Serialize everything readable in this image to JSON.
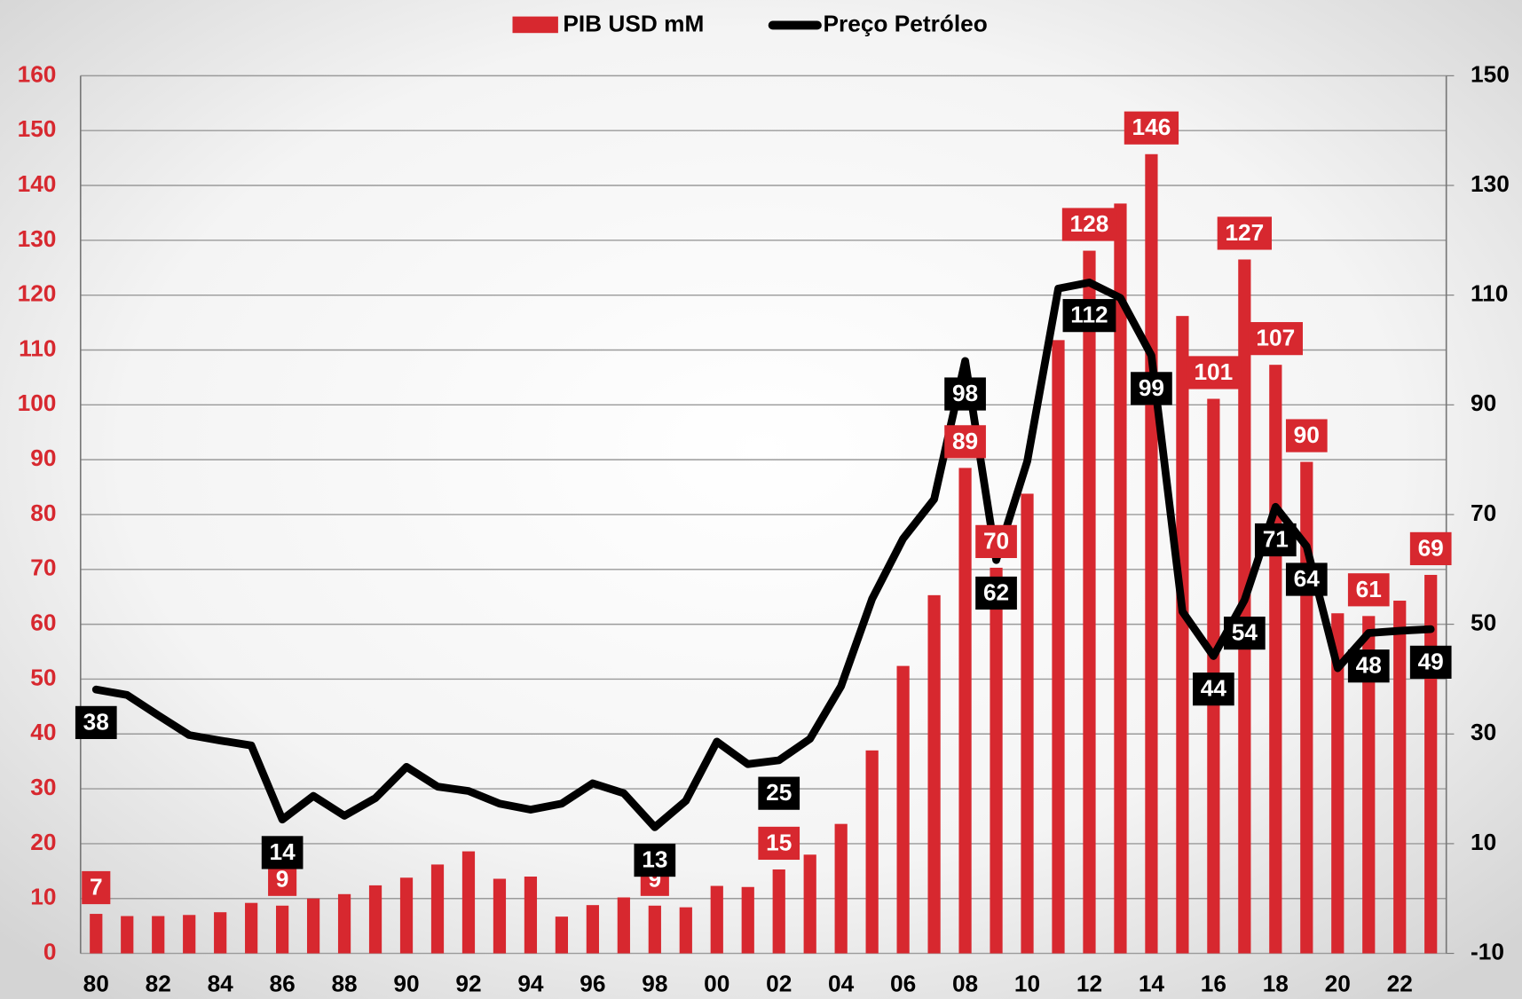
{
  "chart_data": {
    "type": "bar-line",
    "categories": [
      "80",
      null,
      "82",
      null,
      "84",
      null,
      "86",
      null,
      "88",
      null,
      "90",
      null,
      "92",
      null,
      "94",
      null,
      "96",
      null,
      "98",
      null,
      "00",
      null,
      "02",
      null,
      "04",
      null,
      "06",
      null,
      "08",
      null,
      "10",
      null,
      "12",
      null,
      "14",
      null,
      "16",
      null,
      "18",
      null,
      "20",
      null,
      "22",
      null
    ],
    "series": [
      {
        "name": "PIB USD mM",
        "type": "bar",
        "color": "#d7282f",
        "axis": "y",
        "values": [
          7.2,
          6.8,
          6.8,
          7.0,
          7.5,
          9.2,
          8.7,
          10.0,
          10.8,
          12.4,
          13.8,
          16.2,
          18.6,
          13.6,
          14.0,
          6.7,
          8.8,
          10.2,
          8.7,
          8.4,
          12.3,
          12.1,
          15.3,
          18.0,
          23.6,
          37.0,
          52.4,
          65.3,
          88.5,
          70.3,
          83.8,
          111.8,
          128.1,
          136.7,
          145.7,
          116.2,
          101.1,
          126.5,
          107.3,
          89.6,
          62.0,
          61.5,
          64.3,
          69.0
        ],
        "value_labels": [
          "7",
          null,
          null,
          null,
          null,
          null,
          "9",
          null,
          null,
          null,
          null,
          null,
          null,
          null,
          null,
          null,
          null,
          null,
          "9",
          null,
          null,
          null,
          "15",
          null,
          null,
          null,
          null,
          null,
          "89",
          "70",
          null,
          null,
          "128",
          null,
          "146",
          null,
          "101",
          "127",
          "107",
          "90",
          null,
          "61",
          null,
          "69"
        ]
      },
      {
        "name": "Preço Petróleo",
        "type": "line",
        "color": "#000000",
        "axis": "y2",
        "values": [
          38.1,
          37.1,
          33.4,
          29.8,
          28.8,
          27.9,
          14.4,
          18.7,
          15.1,
          18.3,
          24.0,
          20.4,
          19.6,
          17.3,
          16.2,
          17.3,
          21.0,
          19.2,
          13.0,
          17.8,
          28.6,
          24.5,
          25.2,
          29.1,
          38.7,
          54.6,
          65.6,
          72.8,
          98.0,
          61.7,
          79.7,
          111.2,
          112.3,
          109.5,
          99.0,
          52.3,
          44.2,
          54.4,
          71.4,
          64.2,
          42.0,
          48.4,
          48.8,
          49.1
        ],
        "value_labels": [
          "38",
          null,
          null,
          null,
          null,
          null,
          "14",
          null,
          null,
          null,
          null,
          null,
          null,
          null,
          null,
          null,
          null,
          null,
          "13",
          null,
          null,
          null,
          "25",
          null,
          null,
          null,
          null,
          null,
          "98",
          "62",
          null,
          null,
          "112",
          null,
          "99",
          null,
          "44",
          "54",
          "71",
          "64",
          null,
          "48",
          null,
          "49"
        ]
      }
    ],
    "ylim": [
      0,
      160
    ],
    "yticks": [
      0,
      10,
      20,
      30,
      40,
      50,
      60,
      70,
      80,
      90,
      100,
      110,
      120,
      130,
      140,
      150,
      160
    ],
    "y2lim": [
      -10,
      150
    ],
    "y2ticks": [
      -10,
      10,
      30,
      50,
      70,
      90,
      110,
      130,
      150
    ],
    "grid": true,
    "legend": "top"
  }
}
